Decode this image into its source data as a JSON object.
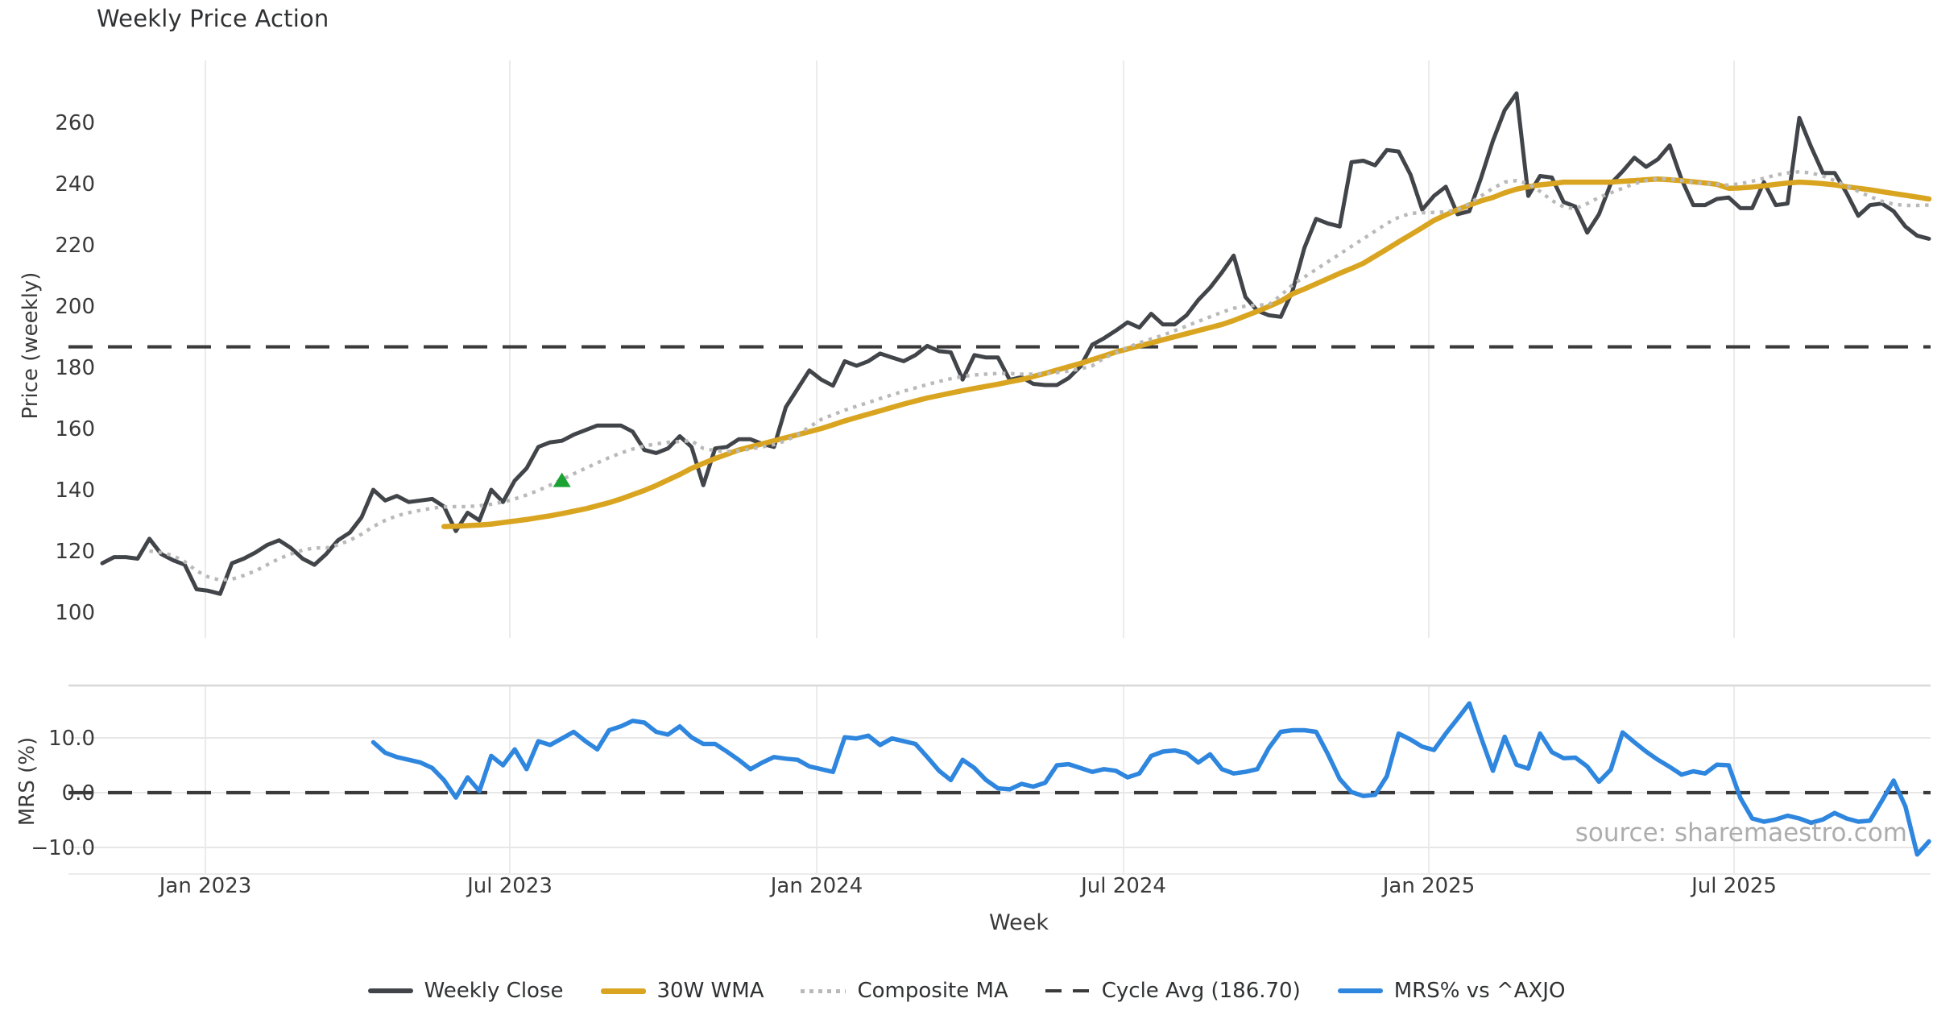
{
  "title": "Weekly Price Action",
  "watermark": "source: sharemaestro.com",
  "colors": {
    "close": "#414549",
    "wma": "#d9a521",
    "composite": "#b9b9b9",
    "cycle": "#3a3a3a",
    "mrs": "#2e86de",
    "marker": "#1aa233",
    "grid": "#ebebeb",
    "panel_border": "#d8d8d8",
    "text": "#3a3a3a",
    "title_text": "#2f3133",
    "watermark_text": "#a9a9a9"
  },
  "legend": [
    {
      "label": "Weekly Close",
      "swatch": "solid-thick",
      "color_key": "close"
    },
    {
      "label": "30W WMA",
      "swatch": "solid-thick",
      "color_key": "wma"
    },
    {
      "label": "Composite MA",
      "swatch": "dotted",
      "color_key": "composite"
    },
    {
      "label": "Cycle Avg (186.70)",
      "swatch": "dashed",
      "color_key": "cycle"
    },
    {
      "label": "MRS% vs ^AXJO",
      "swatch": "solid-thick",
      "color_key": "mrs"
    }
  ],
  "chart_data": {
    "type": "line",
    "title": "Weekly Price Action",
    "x_axis": {
      "label": "Week",
      "unit": "week_index",
      "range": [
        0,
        155
      ],
      "ticks": [
        {
          "pos": 8.75,
          "label": "Jan 2023"
        },
        {
          "pos": 34.58,
          "label": "Jul 2023"
        },
        {
          "pos": 60.62,
          "label": "Jan 2024"
        },
        {
          "pos": 86.66,
          "label": "Jul 2024"
        },
        {
          "pos": 112.56,
          "label": "Jan 2025"
        },
        {
          "pos": 138.46,
          "label": "Jul 2025"
        }
      ],
      "grid": true
    },
    "panels": [
      {
        "name": "price",
        "ylabel": "Price (weekly)",
        "ylim": [
          92,
          283
        ],
        "y_ticks": [
          {
            "v": 100,
            "label": "100"
          },
          {
            "v": 120,
            "label": "120"
          },
          {
            "v": 140,
            "label": "140"
          },
          {
            "v": 160,
            "label": "160"
          },
          {
            "v": 180,
            "label": "180"
          },
          {
            "v": 200,
            "label": "200"
          },
          {
            "v": 220,
            "label": "220"
          },
          {
            "v": 240,
            "label": "240"
          },
          {
            "v": 260,
            "label": "260"
          }
        ],
        "h_grid": false,
        "hline": {
          "value": 186.7,
          "style": "dashed",
          "color_key": "cycle",
          "legend_label": "Cycle Avg (186.70)"
        },
        "marker": {
          "shape": "triangle-up",
          "x": 39,
          "value": 143,
          "color_key": "marker"
        },
        "series": [
          {
            "name": "Weekly Close",
            "color_key": "close",
            "style": "solid",
            "width": 5,
            "start": 0,
            "values": [
              116,
              118,
              118,
              117.5,
              124,
              119,
              117,
              115.5,
              107.5,
              107,
              106,
              116,
              117.5,
              119.5,
              122,
              123.5,
              121,
              117.5,
              115.5,
              119,
              123.5,
              126,
              131,
              140,
              136.5,
              138,
              136,
              136.5,
              137,
              134.5,
              126.5,
              132.5,
              130,
              140,
              136,
              143,
              147,
              154,
              155.5,
              156,
              158,
              159.5,
              161,
              161,
              161,
              159,
              153,
              152,
              153.5,
              157.5,
              154,
              141.5,
              153.5,
              154,
              156.5,
              156.5,
              155,
              154,
              167,
              173,
              179,
              176,
              174,
              182,
              180.5,
              182,
              184.5,
              183.2,
              182,
              184,
              187,
              185.3,
              184.9,
              176,
              184,
              183.2,
              183.2,
              175.9,
              176.8,
              174.6,
              174.2,
              174.2,
              176.5,
              180.3,
              187.4,
              189.5,
              192,
              194.7,
              193,
              197.5,
              194,
              194,
              197,
              202,
              206,
              211,
              216.5,
              203,
              198.5,
              197,
              196.5,
              205,
              219,
              228.5,
              227,
              226,
              247,
              247.5,
              246,
              251,
              250.5,
              243,
              231.5,
              236,
              239,
              230,
              231,
              242,
              254,
              264,
              269.5,
              236,
              242.5,
              242,
              234,
              232.5,
              224,
              230,
              240,
              244,
              248.5,
              245.5,
              248,
              252.5,
              241.5,
              233,
              233,
              235,
              235.5,
              232,
              232,
              240.5,
              233,
              233.5,
              261.5,
              252,
              243.5,
              243.5,
              237,
              229.5,
              233,
              233.5,
              231,
              226,
              223,
              222
            ]
          },
          {
            "name": "30W WMA",
            "color_key": "wma",
            "style": "solid",
            "width": 6.5,
            "start": 29,
            "values": [
              128,
              128.1,
              128.3,
              128.5,
              128.8,
              129.3,
              129.8,
              130.3,
              130.9,
              131.5,
              132.2,
              133,
              133.8,
              134.8,
              135.8,
              137,
              138.4,
              139.8,
              141.4,
              143.2,
              145,
              147,
              148.6,
              150.2,
              151.6,
              153,
              154,
              155,
              156,
              157,
              158,
              159,
              160,
              161.2,
              162.5,
              163.6,
              164.7,
              165.8,
              166.9,
              168,
              169,
              170,
              170.8,
              171.6,
              172.4,
              173.1,
              173.8,
              174.5,
              175.3,
              176,
              177,
              178,
              179.1,
              180.2,
              181.3,
              182.5,
              183.7,
              185,
              186,
              187,
              188,
              189,
              190,
              191,
              192,
              193,
              194,
              195.3,
              196.8,
              198.3,
              199.9,
              201.6,
              204,
              205.6,
              207.3,
              209,
              210.7,
              212.3,
              214,
              216.3,
              218.6,
              221,
              223.3,
              225.6,
              228,
              229.8,
              231.5,
              233,
              234.4,
              235.5,
              237,
              238.2,
              239,
              239.6,
              240,
              240.5,
              240.5,
              240.5,
              240.5,
              240.5,
              240.8,
              241,
              241.3,
              241.5,
              241.3,
              241,
              240.6,
              240.2,
              239.8,
              238.5,
              238.6,
              238.9,
              239.3,
              239.8,
              240.2,
              240.5,
              240.3,
              240,
              239.6,
              239,
              238.5,
              238,
              237.4,
              236.8,
              236.2,
              235.6,
              235
            ]
          },
          {
            "name": "Composite MA",
            "color_key": "composite",
            "style": "dotted",
            "width": 4.4,
            "start": 4,
            "values": [
              120,
              119.5,
              118.5,
              116.5,
              113.5,
              111.5,
              110.5,
              110.8,
              112,
              113.5,
              115.5,
              117.5,
              119,
              120.3,
              121,
              121,
              122,
              123.5,
              125.5,
              128,
              130,
              131.5,
              132.5,
              133.3,
              134,
              134.4,
              134.5,
              134.5,
              134.8,
              135.3,
              136,
              137,
              138.3,
              139.8,
              141.5,
              143.3,
              145.2,
              147,
              148.8,
              150.5,
              152,
              153.3,
              154.3,
              155,
              155.5,
              155.8,
              156,
              153.5,
              152.8,
              152.5,
              152.8,
              153.3,
              154,
              154.8,
              156,
              158,
              160.5,
              163,
              164.5,
              166,
              167.3,
              168.5,
              169.8,
              171,
              172.2,
              173.3,
              174.4,
              175.4,
              176.3,
              177,
              177.5,
              177.8,
              178,
              178,
              177.8,
              177.8,
              178,
              178.3,
              178.8,
              179.5,
              180.5,
              183,
              184.8,
              186.5,
              188,
              189.3,
              190.5,
              192,
              193.5,
              195,
              196.5,
              198,
              199.3,
              200,
              200.3,
              200.5,
              203.5,
              207,
              209.5,
              212,
              214.5,
              217,
              219.5,
              222,
              224.5,
              227,
              229,
              230.3,
              230.5,
              230.6,
              230.8,
              231.5,
              233.5,
              236,
              238.5,
              240.5,
              241,
              240,
              237.5,
              234.5,
              232.4,
              231.8,
              233.5,
              235.5,
              237,
              238.5,
              240,
              241,
              241.6,
              241.5,
              241,
              240.5,
              240,
              239.8,
              239.5,
              240,
              240.8,
              241.8,
              242.8,
              243.5,
              243.9,
              243.5,
              242.5,
              241,
              239.3,
              237.5,
              235.8,
              234.3,
              233.3,
              232.9,
              232.9,
              233
            ]
          }
        ]
      },
      {
        "name": "mrs",
        "ylabel": "MRS (%)",
        "ylim": [
          -14.8,
          19.5
        ],
        "y_ticks": [
          {
            "v": 10,
            "label": "10.0"
          },
          {
            "v": 0,
            "label": "0.0"
          },
          {
            "v": -10,
            "label": "−10.0"
          }
        ],
        "h_grid": true,
        "hline": {
          "value": 0,
          "style": "dashed",
          "color_key": "cycle"
        },
        "series": [
          {
            "name": "MRS% vs ^AXJO",
            "color_key": "mrs",
            "style": "solid",
            "width": 5.5,
            "start": 23,
            "values": [
              9.2,
              7.3,
              6.5,
              6,
              5.5,
              4.5,
              2.3,
              -0.9,
              2.8,
              0.3,
              6.7,
              5,
              7.9,
              4.3,
              9.4,
              8.7,
              9.9,
              11.1,
              9.4,
              7.9,
              11.4,
              12.1,
              13.1,
              12.8,
              11.1,
              10.6,
              12.1,
              10.1,
              8.9,
              8.9,
              7.5,
              6,
              4.3,
              5.5,
              6.5,
              6.2,
              6,
              4.8,
              4.3,
              3.8,
              10.1,
              9.9,
              10.4,
              8.7,
              9.9,
              9.4,
              8.9,
              6.5,
              4,
              2.3,
              6,
              4.5,
              2.3,
              0.8,
              0.6,
              1.6,
              1.1,
              1.8,
              5,
              5.2,
              4.5,
              3.8,
              4.3,
              4,
              2.8,
              3.5,
              6.7,
              7.5,
              7.7,
              7.2,
              5.5,
              7,
              4.3,
              3.5,
              3.8,
              4.3,
              8.2,
              11.1,
              11.4,
              11.4,
              11.1,
              7,
              2.5,
              0.1,
              -0.6,
              -0.4,
              3,
              10.8,
              9.7,
              8.4,
              7.8,
              10.8,
              13.5,
              16.3,
              10,
              4,
              10.2,
              5.1,
              4.4,
              10.8,
              7.4,
              6.3,
              6.4,
              4.8,
              2,
              4.2,
              11,
              9.2,
              7.5,
              6,
              4.7,
              3.3,
              3.9,
              3.5,
              5.1,
              5,
              -1,
              -4.7,
              -5.3,
              -4.9,
              -4.2,
              -4.7,
              -5.5,
              -4.9,
              -3.7,
              -4.7,
              -5.3,
              -5.1,
              -1.5,
              2.2,
              -2.5,
              -11.3,
              -8.9
            ]
          }
        ]
      }
    ]
  }
}
